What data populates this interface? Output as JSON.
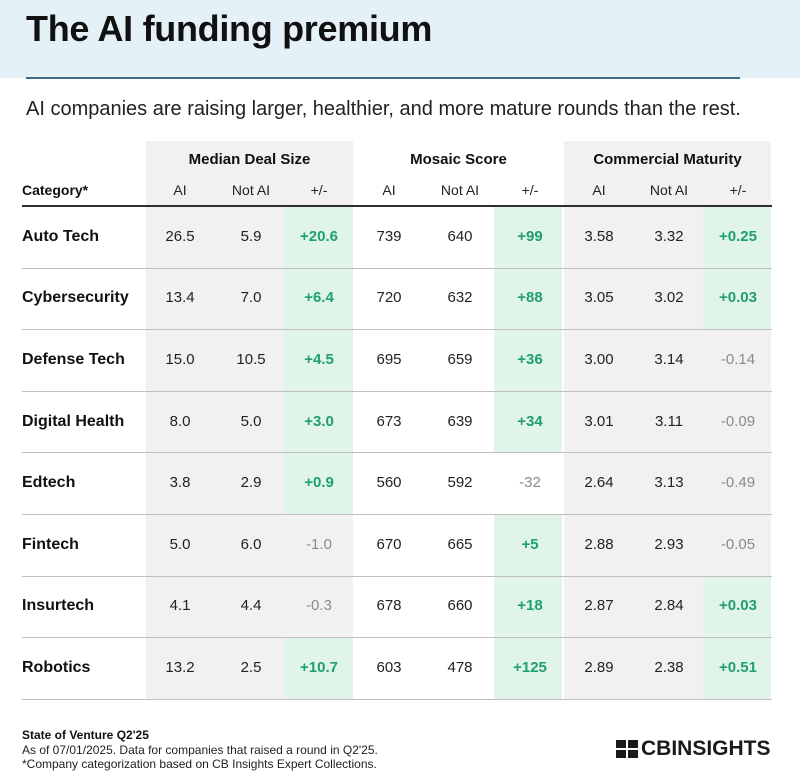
{
  "title": "The AI funding premium",
  "subtitle": "AI companies are raising larger, healthier, and more mature rounds than the rest.",
  "colors": {
    "header_bg": "#e4f1f7",
    "band": "#f1f1f1",
    "highlight": "#e0f4ea",
    "positive": "#20a06a",
    "negative": "#8a8a8a"
  },
  "category_header": "Category*",
  "groups": [
    "Median Deal Size",
    "Mosaic Score",
    "Commercial Maturity"
  ],
  "sub_labels": [
    "AI",
    "Not AI",
    "+/-"
  ],
  "chart_data": {
    "type": "table",
    "title": "The AI funding premium",
    "columns": [
      "Category*",
      "Median Deal Size AI",
      "Median Deal Size Not AI",
      "Median Deal Size +/-",
      "Mosaic Score AI",
      "Mosaic Score Not AI",
      "Mosaic Score +/-",
      "Commercial Maturity AI",
      "Commercial Maturity Not AI",
      "Commercial Maturity +/-"
    ],
    "rows": [
      {
        "category": "Auto Tech",
        "values": [
          "26.5",
          "5.9",
          "+20.6",
          "739",
          "640",
          "+99",
          "3.58",
          "3.32",
          "+0.25"
        ]
      },
      {
        "category": "Cybersecurity",
        "values": [
          "13.4",
          "7.0",
          "+6.4",
          "720",
          "632",
          "+88",
          "3.05",
          "3.02",
          "+0.03"
        ]
      },
      {
        "category": "Defense Tech",
        "values": [
          "15.0",
          "10.5",
          "+4.5",
          "695",
          "659",
          "+36",
          "3.00",
          "3.14",
          "-0.14"
        ]
      },
      {
        "category": "Digital Health",
        "values": [
          "8.0",
          "5.0",
          "+3.0",
          "673",
          "639",
          "+34",
          "3.01",
          "3.11",
          "-0.09"
        ]
      },
      {
        "category": "Edtech",
        "values": [
          "3.8",
          "2.9",
          "+0.9",
          "560",
          "592",
          "-32",
          "2.64",
          "3.13",
          "-0.49"
        ]
      },
      {
        "category": "Fintech",
        "values": [
          "5.0",
          "6.0",
          "-1.0",
          "670",
          "665",
          "+5",
          "2.88",
          "2.93",
          "-0.05"
        ]
      },
      {
        "category": "Insurtech",
        "values": [
          "4.1",
          "4.4",
          "-0.3",
          "678",
          "660",
          "+18",
          "2.87",
          "2.84",
          "+0.03"
        ]
      },
      {
        "category": "Robotics",
        "values": [
          "13.2",
          "2.5",
          "+10.7",
          "603",
          "478",
          "+125",
          "2.89",
          "2.38",
          "+0.51"
        ]
      }
    ]
  },
  "footer": {
    "title": "State of Venture Q2'25",
    "note1": "As of 07/01/2025. Data for companies that raised a round in Q2'25.",
    "note2": "*Company categorization based on CB Insights Expert Collections.",
    "brand": "CBINSIGHTS"
  }
}
